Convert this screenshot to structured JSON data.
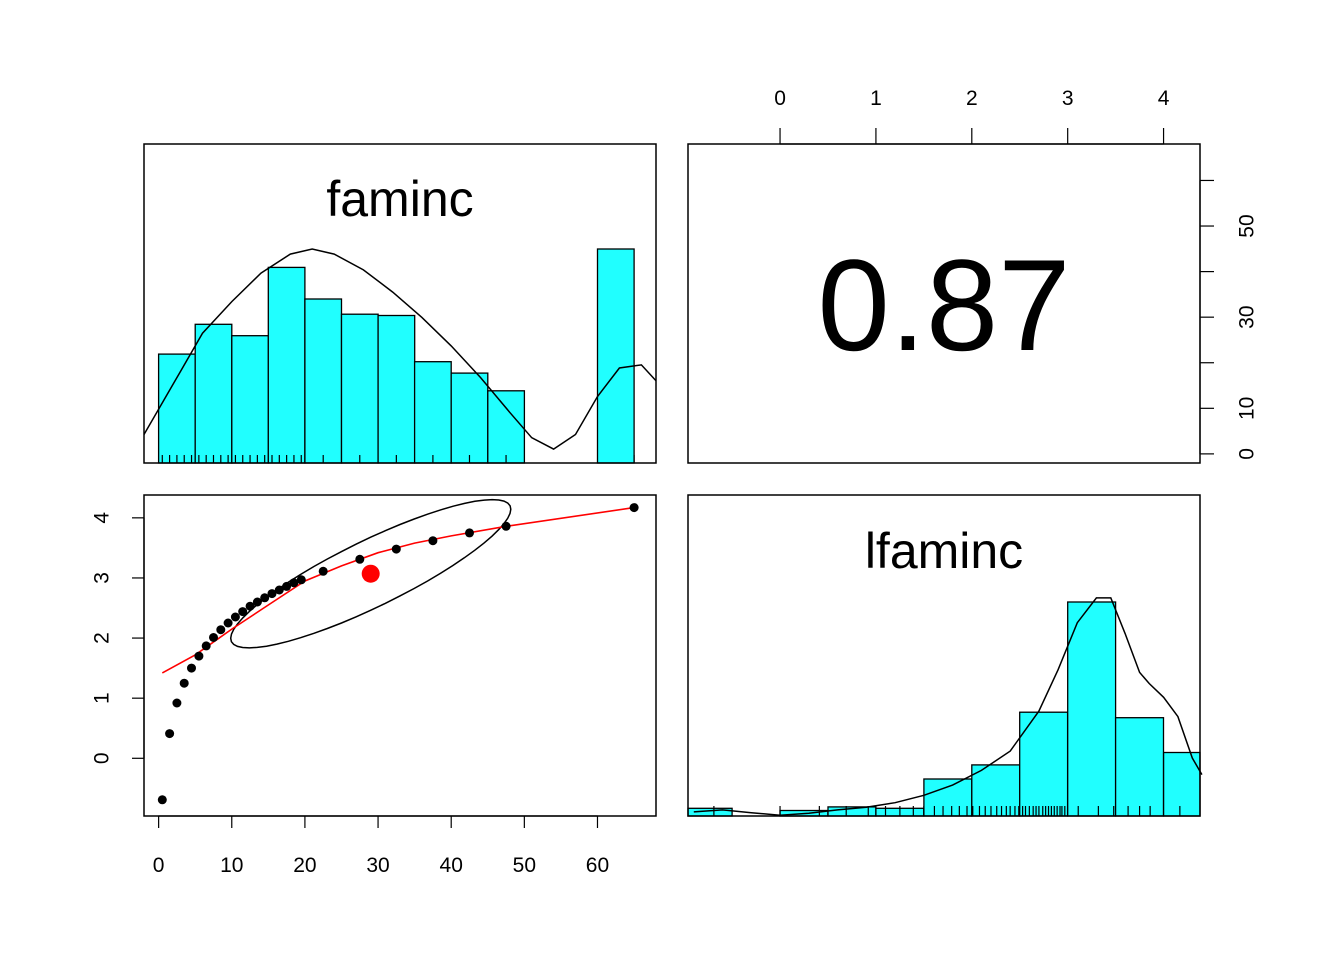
{
  "chart_data": {
    "type": "scatter",
    "variables": [
      "faminc",
      "lfaminc"
    ],
    "correlation": {
      "text": "0.87",
      "value": 0.87
    },
    "faminc_histogram": {
      "bins": [
        {
          "from": 0,
          "to": 5,
          "density": 0.0172
        },
        {
          "from": 5,
          "to": 10,
          "density": 0.0219
        },
        {
          "from": 10,
          "to": 15,
          "density": 0.0201
        },
        {
          "from": 15,
          "to": 20,
          "density": 0.0309
        },
        {
          "from": 20,
          "to": 25,
          "density": 0.0259
        },
        {
          "from": 25,
          "to": 30,
          "density": 0.0235
        },
        {
          "from": 30,
          "to": 35,
          "density": 0.0233
        },
        {
          "from": 35,
          "to": 40,
          "density": 0.016
        },
        {
          "from": 40,
          "to": 45,
          "density": 0.0142
        },
        {
          "from": 45,
          "to": 50,
          "density": 0.0114
        },
        {
          "from": 50,
          "to": 55,
          "density": 0
        },
        {
          "from": 55,
          "to": 60,
          "density": 0
        },
        {
          "from": 60,
          "to": 65,
          "density": 0.0338
        }
      ],
      "rug": [
        0.5,
        1.5,
        2.5,
        3.5,
        4.5,
        5.5,
        6.5,
        7.5,
        8.5,
        9.5,
        10.5,
        11.5,
        12.5,
        13.5,
        14.5,
        15.5,
        16.5,
        17.5,
        18.5,
        19.5,
        22.5,
        27.5,
        32.5,
        37.5,
        42.5,
        47.5,
        65
      ],
      "density_curve": [
        [
          -2,
          0.0045
        ],
        [
          0,
          0.0085
        ],
        [
          3,
          0.0145
        ],
        [
          6,
          0.0205
        ],
        [
          10,
          0.0255
        ],
        [
          14,
          0.03
        ],
        [
          18,
          0.033
        ],
        [
          21,
          0.0338
        ],
        [
          24,
          0.033
        ],
        [
          28,
          0.0305
        ],
        [
          32,
          0.027
        ],
        [
          36,
          0.023
        ],
        [
          40,
          0.0185
        ],
        [
          44,
          0.0135
        ],
        [
          48,
          0.008
        ],
        [
          51,
          0.004
        ],
        [
          54,
          0.0022
        ],
        [
          57,
          0.0045
        ],
        [
          60,
          0.0105
        ],
        [
          63,
          0.015
        ],
        [
          66,
          0.0155
        ],
        [
          68,
          0.013
        ]
      ]
    },
    "lfaminc_histogram": {
      "bins": [
        {
          "from": -1.0,
          "to": -0.5,
          "density": 0.028
        },
        {
          "from": -0.5,
          "to": 0.0,
          "density": 0
        },
        {
          "from": 0.0,
          "to": 0.5,
          "density": 0.02
        },
        {
          "from": 0.5,
          "to": 1.0,
          "density": 0.033
        },
        {
          "from": 1.0,
          "to": 1.5,
          "density": 0.028
        },
        {
          "from": 1.5,
          "to": 2.0,
          "density": 0.134
        },
        {
          "from": 2.0,
          "to": 2.5,
          "density": 0.185
        },
        {
          "from": 2.5,
          "to": 3.0,
          "density": 0.376
        },
        {
          "from": 3.0,
          "to": 3.5,
          "density": 0.775
        },
        {
          "from": 3.5,
          "to": 4.0,
          "density": 0.356
        },
        {
          "from": 4.0,
          "to": 4.5,
          "density": 0.23
        }
      ],
      "rug": [
        -0.69,
        0.0,
        0.41,
        0.69,
        0.92,
        1.1,
        1.25,
        1.39,
        1.5,
        1.61,
        1.7,
        1.79,
        1.87,
        1.95,
        2.01,
        2.08,
        2.14,
        2.2,
        2.26,
        2.31,
        2.36,
        2.4,
        2.45,
        2.49,
        2.53,
        2.56,
        2.6,
        2.64,
        2.67,
        2.7,
        2.74,
        2.77,
        2.8,
        2.83,
        2.86,
        2.89,
        2.92,
        2.94,
        2.97,
        3.11,
        3.32,
        3.48,
        3.63,
        3.75,
        3.86,
        4.17
      ],
      "density_curve": [
        [
          -0.9,
          0.015
        ],
        [
          -0.6,
          0.022
        ],
        [
          -0.3,
          0.012
        ],
        [
          0.0,
          0.003
        ],
        [
          0.3,
          0.01
        ],
        [
          0.6,
          0.022
        ],
        [
          0.9,
          0.032
        ],
        [
          1.2,
          0.048
        ],
        [
          1.5,
          0.075
        ],
        [
          1.8,
          0.112
        ],
        [
          2.1,
          0.165
        ],
        [
          2.4,
          0.235
        ],
        [
          2.7,
          0.38
        ],
        [
          2.9,
          0.53
        ],
        [
          3.1,
          0.7
        ],
        [
          3.3,
          0.79
        ],
        [
          3.45,
          0.79
        ],
        [
          3.6,
          0.66
        ],
        [
          3.75,
          0.52
        ],
        [
          3.85,
          0.48
        ],
        [
          4.0,
          0.43
        ],
        [
          4.15,
          0.36
        ],
        [
          4.3,
          0.21
        ],
        [
          4.4,
          0.15
        ]
      ]
    },
    "scatter": {
      "points": [
        [
          0.5,
          -0.69
        ],
        [
          1.5,
          0.41
        ],
        [
          2.5,
          0.92
        ],
        [
          3.5,
          1.25
        ],
        [
          4.5,
          1.5
        ],
        [
          5.5,
          1.7
        ],
        [
          6.5,
          1.87
        ],
        [
          7.5,
          2.01
        ],
        [
          8.5,
          2.14
        ],
        [
          9.5,
          2.25
        ],
        [
          10.5,
          2.35
        ],
        [
          11.5,
          2.44
        ],
        [
          12.5,
          2.53
        ],
        [
          13.5,
          2.6
        ],
        [
          14.5,
          2.67
        ],
        [
          15.5,
          2.74
        ],
        [
          16.5,
          2.8
        ],
        [
          17.5,
          2.86
        ],
        [
          18.5,
          2.92
        ],
        [
          19.5,
          2.97
        ],
        [
          22.5,
          3.11
        ],
        [
          27.5,
          3.31
        ],
        [
          32.5,
          3.48
        ],
        [
          37.5,
          3.62
        ],
        [
          42.5,
          3.75
        ],
        [
          47.5,
          3.86
        ],
        [
          65,
          4.17
        ]
      ],
      "center": [
        29,
        3.07
      ],
      "fit_line": [
        [
          0.5,
          1.42
        ],
        [
          5,
          1.72
        ],
        [
          10,
          2.15
        ],
        [
          15,
          2.55
        ],
        [
          20,
          2.95
        ],
        [
          25,
          3.2
        ],
        [
          30,
          3.42
        ],
        [
          35,
          3.58
        ],
        [
          40,
          3.7
        ],
        [
          47.5,
          3.86
        ],
        [
          65,
          4.17
        ]
      ],
      "ellipse": {
        "center": [
          29,
          3.07
        ],
        "rx_data": 22.5,
        "ry_data": 0.35,
        "angle_data_tilt": true
      }
    },
    "axes": {
      "faminc": {
        "ticks": [
          0,
          10,
          20,
          30,
          40,
          50,
          60
        ],
        "range": [
          -2,
          68
        ]
      },
      "lfaminc": {
        "ticks": [
          0,
          1,
          2,
          3,
          4
        ],
        "range": [
          -0.96,
          4.38
        ]
      }
    }
  }
}
